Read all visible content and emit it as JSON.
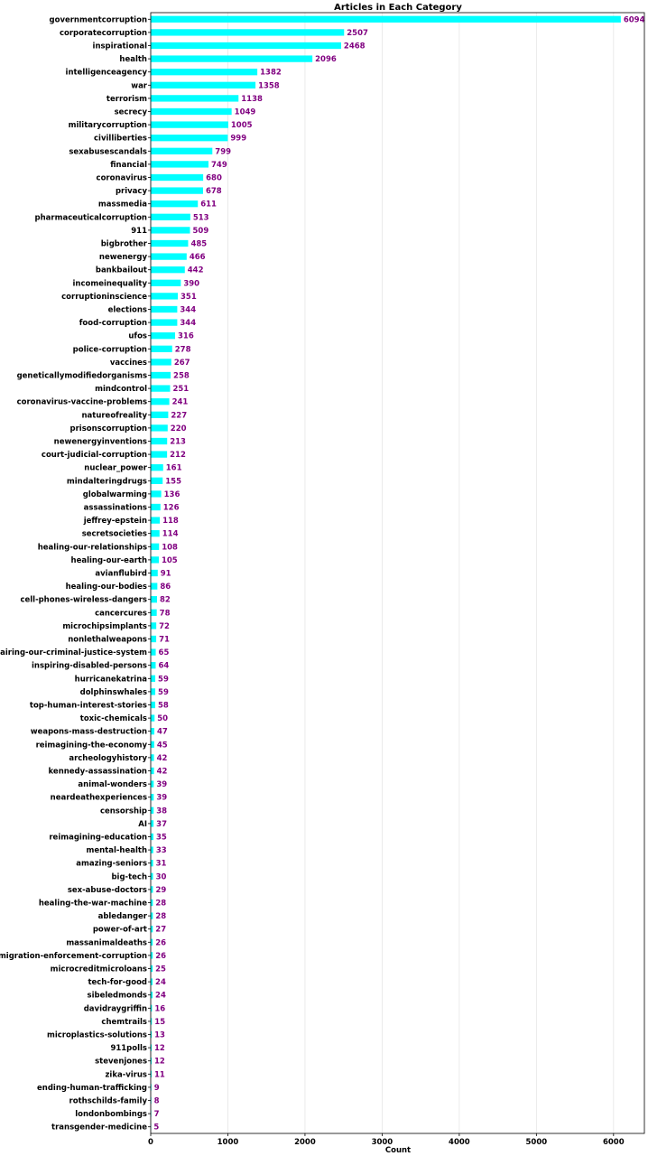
{
  "chart_data": {
    "type": "bar",
    "orientation": "horizontal",
    "title": "Articles in Each Category",
    "xlabel": "Count",
    "ylabel": "",
    "xlim": [
      0,
      6400
    ],
    "xticks": [
      "0",
      "1000",
      "2000",
      "3000",
      "4000",
      "5000",
      "6000"
    ],
    "grid": "x-axis",
    "bar_color": "#00ffff",
    "label_color": "#800080",
    "categories": [
      "governmentcorruption",
      "corporatecorruption",
      "inspirational",
      "health",
      "intelligenceagency",
      "war",
      "terrorism",
      "secrecy",
      "militarycorruption",
      "civilliberties",
      "sexabusescandals",
      "financial",
      "coronavirus",
      "privacy",
      "massmedia",
      "pharmaceuticalcorruption",
      "911",
      "bigbrother",
      "newenergy",
      "bankbailout",
      "incomeinequality",
      "corruptioninscience",
      "elections",
      "food-corruption",
      "ufos",
      "police-corruption",
      "vaccines",
      "geneticallymodifiedorganisms",
      "mindcontrol",
      "coronavirus-vaccine-problems",
      "natureofreality",
      "prisonscorruption",
      "newenergyinventions",
      "court-judicial-corruption",
      "nuclear_power",
      "mindalteringdrugs",
      "globalwarming",
      "assassinations",
      "jeffrey-epstein",
      "secretsocieties",
      "healing-our-relationships",
      "healing-our-earth",
      "avianflubird",
      "healing-our-bodies",
      "cell-phones-wireless-dangers",
      "cancercures",
      "microchipsimplants",
      "nonlethalweapons",
      "repairing-our-criminal-justice-system",
      "inspiring-disabled-persons",
      "hurricanekatrina",
      "dolphinswhales",
      "top-human-interest-stories",
      "toxic-chemicals",
      "weapons-mass-destruction",
      "reimagining-the-economy",
      "archeologyhistory",
      "kennedy-assassination",
      "animal-wonders",
      "neardeathexperiences",
      "censorship",
      "AI",
      "reimagining-education",
      "mental-health",
      "amazing-seniors",
      "big-tech",
      "sex-abuse-doctors",
      "healing-the-war-machine",
      "abledanger",
      "power-of-art",
      "massanimaldeaths",
      "immigration-enforcement-corruption",
      "microcreditmicroloans",
      "tech-for-good",
      "sibeledmonds",
      "davidraygriffin",
      "chemtrails",
      "microplastics-solutions",
      "911polls",
      "stevenjones",
      "zika-virus",
      "ending-human-trafficking",
      "rothschilds-family",
      "londonbombings",
      "transgender-medicine"
    ],
    "values": [
      6094,
      2507,
      2468,
      2096,
      1382,
      1358,
      1138,
      1049,
      1005,
      999,
      799,
      749,
      680,
      678,
      611,
      513,
      509,
      485,
      466,
      442,
      390,
      351,
      344,
      344,
      316,
      278,
      267,
      258,
      251,
      241,
      227,
      220,
      213,
      212,
      161,
      155,
      136,
      126,
      118,
      114,
      108,
      105,
      91,
      86,
      82,
      78,
      72,
      71,
      65,
      64,
      59,
      59,
      58,
      50,
      47,
      45,
      42,
      42,
      39,
      39,
      38,
      37,
      35,
      33,
      31,
      30,
      29,
      28,
      28,
      27,
      26,
      26,
      25,
      24,
      24,
      16,
      15,
      13,
      12,
      12,
      11,
      9,
      8,
      7,
      5
    ]
  }
}
